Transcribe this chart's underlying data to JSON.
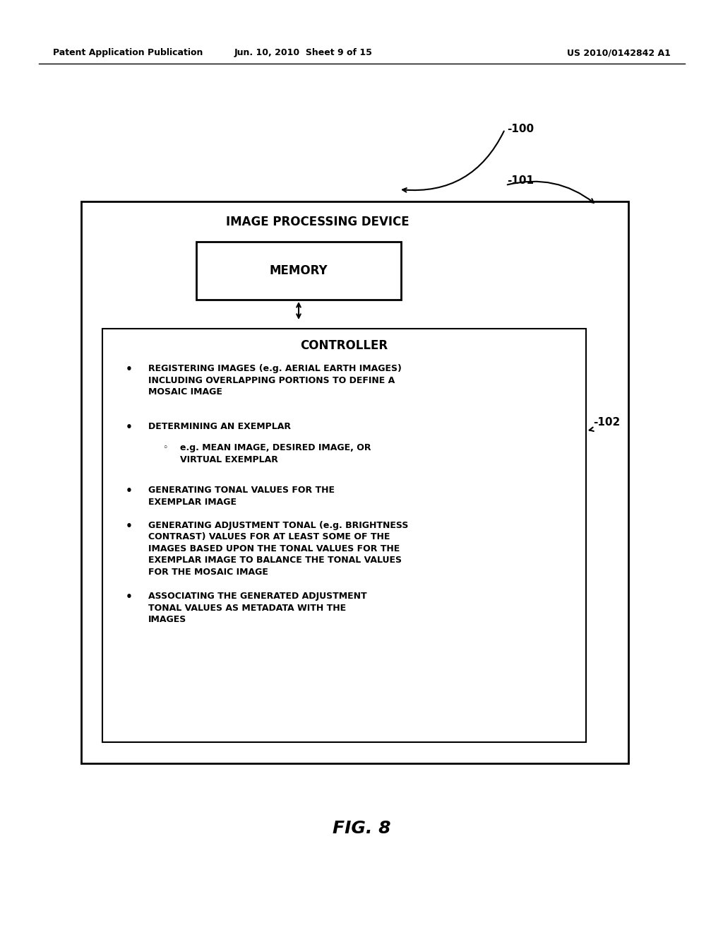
{
  "bg_color": "#ffffff",
  "header_left": "Patent Application Publication",
  "header_mid": "Jun. 10, 2010  Sheet 9 of 15",
  "header_right": "US 2010/0142842 A1",
  "fig_label": "FIG. 8",
  "label_100": "-100",
  "label_101": "-101",
  "label_102": "-102",
  "ipd_label": "IMAGE PROCESSING DEVICE",
  "memory_label": "MEMORY",
  "controller_label": "CONTROLLER"
}
